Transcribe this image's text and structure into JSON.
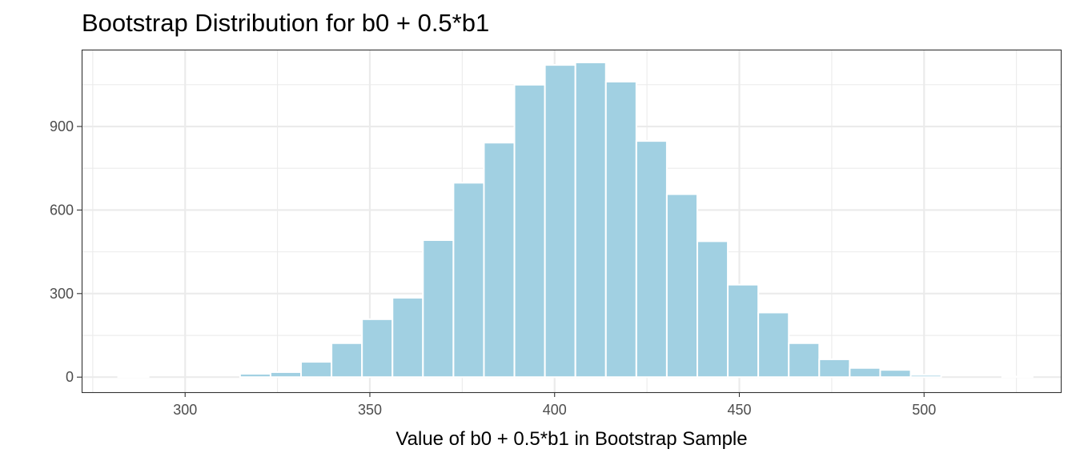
{
  "chart_data": {
    "type": "bar",
    "title": "Bootstrap Distribution for b0 + 0.5*b1",
    "xlabel": "Value of b0 + 0.5*b1 in Bootstrap Sample",
    "ylabel": "",
    "xlim": [
      272,
      537
    ],
    "ylim": [
      -54,
      1176
    ],
    "x_ticks": [
      300,
      350,
      400,
      450,
      500
    ],
    "y_ticks": [
      0,
      300,
      600,
      900
    ],
    "bin_width": 8.25,
    "bins": [
      {
        "x": 286,
        "count": 2
      },
      {
        "x": 294.25,
        "count": 0
      },
      {
        "x": 302.5,
        "count": 0
      },
      {
        "x": 310.75,
        "count": 0
      },
      {
        "x": 319,
        "count": 12
      },
      {
        "x": 327.25,
        "count": 18
      },
      {
        "x": 335.5,
        "count": 55
      },
      {
        "x": 343.75,
        "count": 122
      },
      {
        "x": 352,
        "count": 208
      },
      {
        "x": 360.25,
        "count": 285
      },
      {
        "x": 368.5,
        "count": 492
      },
      {
        "x": 376.75,
        "count": 698
      },
      {
        "x": 385,
        "count": 842
      },
      {
        "x": 393.25,
        "count": 1050
      },
      {
        "x": 401.5,
        "count": 1121
      },
      {
        "x": 409.75,
        "count": 1130
      },
      {
        "x": 418,
        "count": 1061
      },
      {
        "x": 426.25,
        "count": 848
      },
      {
        "x": 434.5,
        "count": 657
      },
      {
        "x": 442.75,
        "count": 488
      },
      {
        "x": 451,
        "count": 332
      },
      {
        "x": 459.25,
        "count": 232
      },
      {
        "x": 467.5,
        "count": 122
      },
      {
        "x": 475.75,
        "count": 64
      },
      {
        "x": 484,
        "count": 33
      },
      {
        "x": 492.25,
        "count": 26
      },
      {
        "x": 500.5,
        "count": 8
      },
      {
        "x": 508.75,
        "count": 0
      },
      {
        "x": 517,
        "count": 0
      },
      {
        "x": 525.25,
        "count": 2
      }
    ],
    "bar_color": "#a1d0e2",
    "bar_edge_color": "#ffffff",
    "grid": true,
    "legend": "none"
  }
}
